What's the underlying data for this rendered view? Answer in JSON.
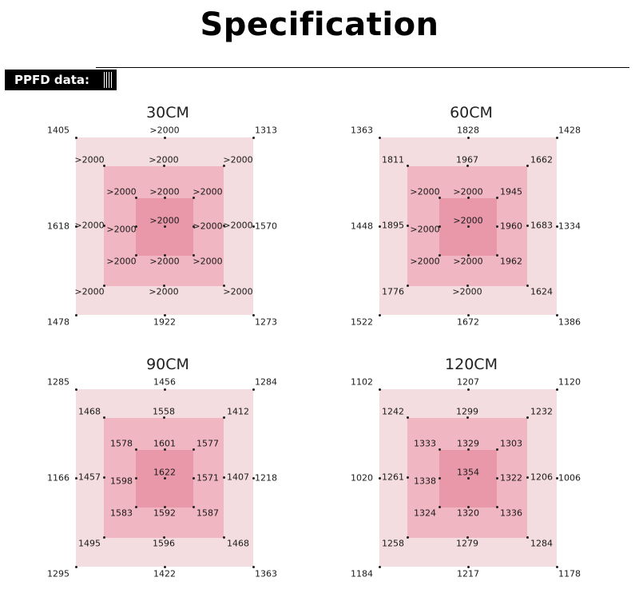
{
  "title": "Specification",
  "section_label": "PPFD data:",
  "panels": [
    {
      "name": "30CM",
      "outer": [
        "1405",
        ">2000",
        "1313",
        "1618",
        "1570",
        "1478",
        "1922",
        "1273"
      ],
      "mid": [
        ">2000",
        ">2000",
        ">2000",
        ">2000",
        ">2000",
        ">2000",
        ">2000",
        ">2000"
      ],
      "inner": [
        ">2000",
        ">2000",
        ">2000",
        ">2000",
        ">2000",
        ">2000",
        ">2000",
        ">2000"
      ],
      "center": ">2000"
    },
    {
      "name": "60CM",
      "outer": [
        "1363",
        "1828",
        "1428",
        "1448",
        "1334",
        "1522",
        "1672",
        "1386"
      ],
      "mid": [
        "1811",
        "1967",
        "1662",
        "1895",
        "1683",
        "1776",
        ">2000",
        "1624"
      ],
      "inner": [
        ">2000",
        ">2000",
        "1945",
        ">2000",
        "1960",
        ">2000",
        ">2000",
        "1962"
      ],
      "center": ">2000"
    },
    {
      "name": "90CM",
      "outer": [
        "1285",
        "1456",
        "1284",
        "1166",
        "1218",
        "1295",
        "1422",
        "1363"
      ],
      "mid": [
        "1468",
        "1558",
        "1412",
        "1457",
        "1407",
        "1495",
        "1596",
        "1468"
      ],
      "inner": [
        "1578",
        "1601",
        "1577",
        "1598",
        "1571",
        "1583",
        "1592",
        "1587"
      ],
      "center": "1622"
    },
    {
      "name": "120CM",
      "outer": [
        "1102",
        "1207",
        "1120",
        "1020",
        "1006",
        "1184",
        "1217",
        "1178"
      ],
      "mid": [
        "1242",
        "1299",
        "1232",
        "1261",
        "1206",
        "1258",
        "1279",
        "1284"
      ],
      "inner": [
        "1333",
        "1329",
        "1303",
        "1338",
        "1322",
        "1324",
        "1320",
        "1336"
      ],
      "center": "1354"
    }
  ]
}
